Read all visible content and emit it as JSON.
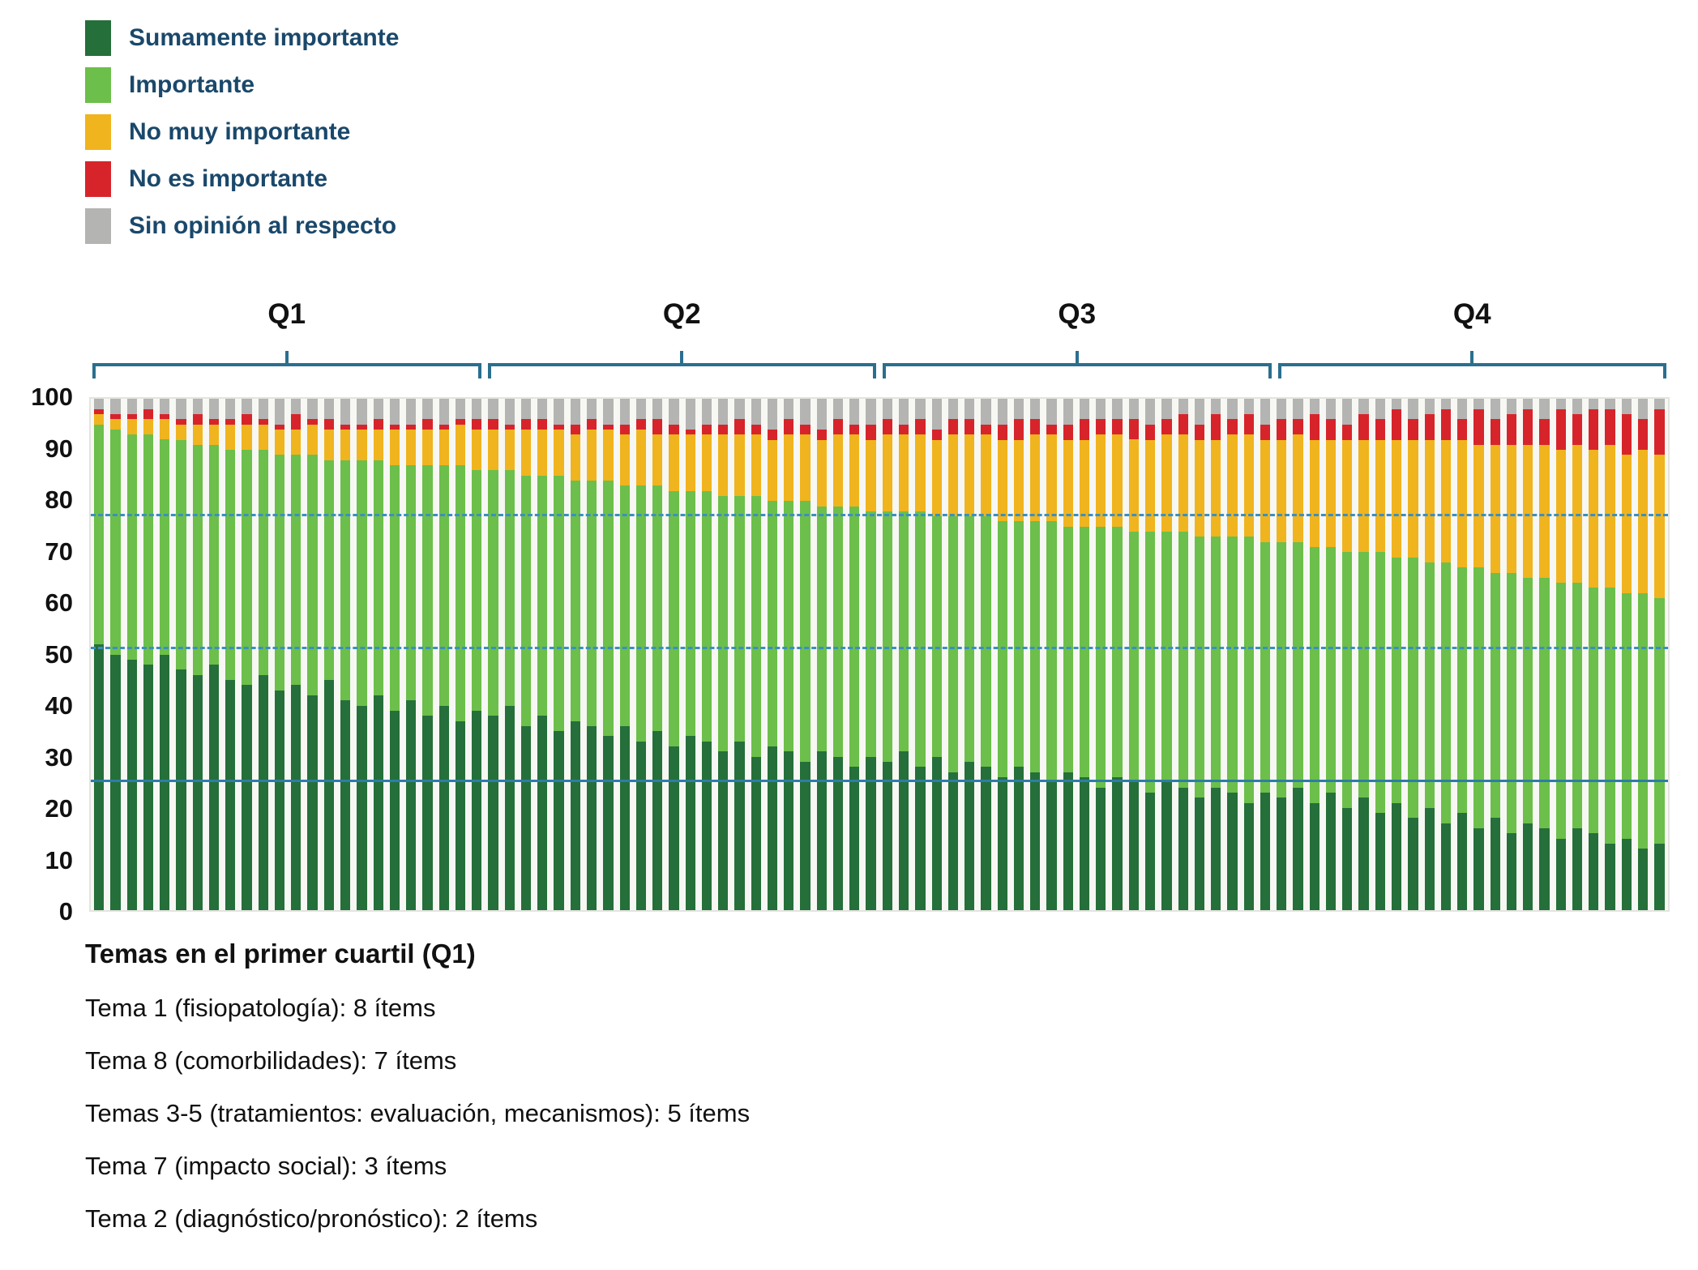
{
  "legend": {
    "items": [
      {
        "label": "Sumamente importante",
        "color": "#256f3a"
      },
      {
        "label": "Importante",
        "color": "#6cbf4a"
      },
      {
        "label": "No muy importante",
        "color": "#f0b41f"
      },
      {
        "label": "No es importante",
        "color": "#d7242b"
      },
      {
        "label": "Sin opinión al respecto",
        "color": "#b4b4b2"
      }
    ]
  },
  "quartiles": {
    "labels": [
      "Q1",
      "Q2",
      "Q3",
      "Q4"
    ]
  },
  "y_axis": {
    "ticks": [
      100,
      90,
      80,
      70,
      60,
      50,
      40,
      30,
      20,
      10,
      0
    ]
  },
  "notes": {
    "title": "Temas en el primer cuartil (Q1)",
    "lines": [
      "Tema 1 (fisiopatología): 8 ítems",
      "Tema 8 (comorbilidades): 7 ítems",
      "Temas 3-5 (tratamientos: evaluación, mecanismos): 5 ítems",
      "Tema 7 (impacto social): 3 ítems",
      "Tema 2 (diagnóstico/pronóstico): 2 ítems"
    ]
  },
  "chart_data": {
    "type": "bar",
    "stacked": true,
    "percent": true,
    "n_items": 96,
    "ylim": [
      0,
      100
    ],
    "yticks": [
      0,
      10,
      20,
      30,
      40,
      50,
      60,
      70,
      80,
      90,
      100
    ],
    "legend_position": "top-left",
    "quartile_brackets": [
      {
        "label": "Q1",
        "items": [
          1,
          24
        ]
      },
      {
        "label": "Q2",
        "items": [
          25,
          48
        ]
      },
      {
        "label": "Q3",
        "items": [
          49,
          72
        ]
      },
      {
        "label": "Q4",
        "items": [
          73,
          96
        ]
      }
    ],
    "reference_lines": [
      {
        "y": 77,
        "style": "dashed",
        "color": "#3a8fc0"
      },
      {
        "y": 51,
        "style": "dashed",
        "color": "#3a8fc0"
      },
      {
        "y": 25,
        "style": "solid",
        "color": "#2c7ea8"
      }
    ],
    "series": [
      {
        "key": "sumamente_importante",
        "name": "Sumamente importante",
        "color": "#256f3a",
        "values": [
          52,
          50,
          49,
          48,
          50,
          47,
          46,
          48,
          45,
          44,
          46,
          43,
          44,
          42,
          45,
          41,
          40,
          42,
          39,
          41,
          38,
          40,
          37,
          39,
          38,
          40,
          36,
          38,
          35,
          37,
          36,
          34,
          36,
          33,
          35,
          32,
          34,
          33,
          31,
          33,
          30,
          32,
          31,
          29,
          31,
          30,
          28,
          30,
          29,
          31,
          28,
          30,
          27,
          29,
          28,
          26,
          28,
          27,
          25,
          27,
          26,
          24,
          26,
          25,
          23,
          25,
          24,
          22,
          24,
          23,
          21,
          23,
          22,
          24,
          21,
          23,
          20,
          22,
          19,
          21,
          18,
          20,
          17,
          19,
          16,
          18,
          15,
          17,
          16,
          14,
          16,
          15,
          13,
          14,
          12,
          13
        ]
      },
      {
        "key": "importante",
        "name": "Importante",
        "color": "#6cbf4a",
        "values": [
          43,
          44,
          44,
          45,
          42,
          45,
          45,
          43,
          45,
          46,
          44,
          46,
          45,
          47,
          43,
          47,
          48,
          46,
          48,
          46,
          49,
          47,
          50,
          47,
          48,
          46,
          49,
          47,
          50,
          47,
          48,
          50,
          47,
          50,
          48,
          50,
          48,
          49,
          50,
          48,
          51,
          48,
          49,
          51,
          48,
          49,
          51,
          48,
          49,
          47,
          50,
          47,
          50,
          48,
          49,
          50,
          48,
          49,
          51,
          48,
          49,
          51,
          49,
          49,
          51,
          49,
          50,
          51,
          49,
          50,
          52,
          49,
          50,
          48,
          50,
          48,
          50,
          48,
          51,
          48,
          51,
          48,
          51,
          48,
          51,
          48,
          51,
          48,
          49,
          50,
          48,
          48,
          50,
          48,
          50,
          48
        ]
      },
      {
        "key": "no_muy_importante",
        "name": "No muy importante",
        "color": "#f0b41f",
        "values": [
          2,
          2,
          3,
          3,
          4,
          3,
          4,
          4,
          5,
          5,
          5,
          5,
          5,
          6,
          6,
          6,
          6,
          6,
          7,
          7,
          7,
          7,
          8,
          8,
          8,
          8,
          9,
          9,
          9,
          9,
          10,
          10,
          10,
          11,
          10,
          11,
          11,
          11,
          12,
          12,
          12,
          12,
          13,
          13,
          13,
          14,
          14,
          14,
          15,
          15,
          15,
          15,
          16,
          16,
          16,
          16,
          16,
          17,
          17,
          17,
          17,
          18,
          18,
          18,
          18,
          19,
          19,
          19,
          19,
          20,
          20,
          20,
          20,
          21,
          21,
          21,
          22,
          22,
          22,
          23,
          23,
          24,
          24,
          25,
          24,
          25,
          25,
          26,
          26,
          26,
          27,
          27,
          28,
          27,
          28,
          28
        ]
      },
      {
        "key": "no_es_importante",
        "name": "No es importante",
        "color": "#d7242b",
        "values": [
          1,
          1,
          1,
          2,
          1,
          1,
          2,
          1,
          1,
          2,
          1,
          1,
          3,
          1,
          2,
          1,
          1,
          2,
          1,
          1,
          2,
          1,
          1,
          2,
          2,
          1,
          2,
          2,
          1,
          2,
          2,
          1,
          2,
          2,
          3,
          2,
          1,
          2,
          2,
          3,
          2,
          2,
          3,
          2,
          2,
          3,
          2,
          3,
          3,
          2,
          3,
          2,
          3,
          3,
          2,
          3,
          4,
          3,
          2,
          3,
          4,
          3,
          3,
          4,
          3,
          3,
          4,
          3,
          5,
          3,
          4,
          3,
          4,
          3,
          5,
          4,
          3,
          5,
          4,
          6,
          4,
          5,
          6,
          4,
          7,
          5,
          6,
          7,
          5,
          8,
          6,
          8,
          7,
          8,
          6,
          9
        ]
      },
      {
        "key": "sin_opinion",
        "name": "Sin opinión al respecto",
        "color": "#b4b4b2",
        "values": [
          2,
          3,
          3,
          2,
          3,
          4,
          3,
          4,
          4,
          3,
          4,
          5,
          3,
          4,
          4,
          5,
          5,
          4,
          5,
          5,
          4,
          5,
          4,
          4,
          4,
          5,
          4,
          4,
          5,
          5,
          4,
          5,
          5,
          4,
          4,
          5,
          6,
          5,
          5,
          4,
          5,
          6,
          4,
          5,
          6,
          4,
          5,
          5,
          4,
          5,
          4,
          6,
          4,
          4,
          5,
          5,
          4,
          4,
          5,
          5,
          4,
          4,
          4,
          4,
          5,
          4,
          3,
          5,
          3,
          4,
          3,
          5,
          4,
          4,
          3,
          4,
          5,
          3,
          4,
          2,
          4,
          3,
          2,
          4,
          2,
          4,
          3,
          2,
          4,
          2,
          3,
          2,
          2,
          3,
          4,
          2
        ]
      }
    ]
  }
}
